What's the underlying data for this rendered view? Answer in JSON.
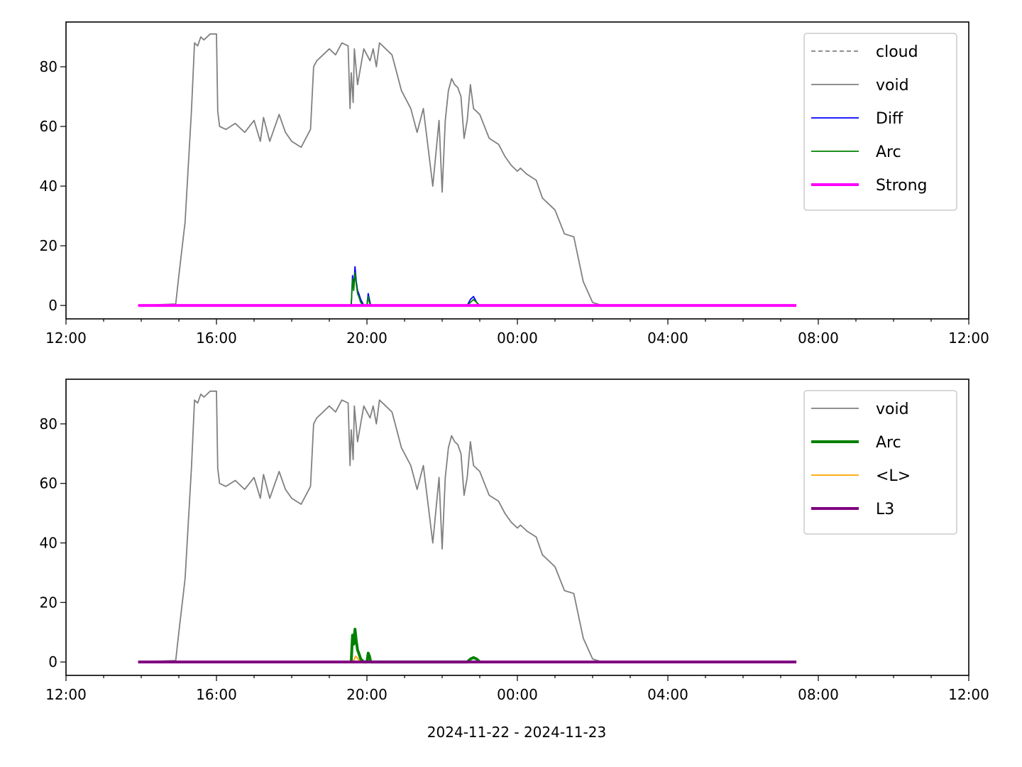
{
  "figure": {
    "xlabel": "2024-11-22 - 2024-11-23"
  },
  "colors": {
    "cloud": "#808080",
    "void": "#808080",
    "Diff": "#0000ff",
    "Arc": "#008000",
    "Strong": "#ff00ff",
    "L": "#ffa500",
    "L3": "#800080"
  },
  "chart_data": [
    {
      "type": "line",
      "x_axis": "time",
      "xlim": [
        "12:00",
        "12:00+1d"
      ],
      "xticks": [
        "12:00",
        "16:00",
        "20:00",
        "00:00",
        "04:00",
        "08:00",
        "12:00"
      ],
      "ylim": [
        -4.5,
        95
      ],
      "yticks": [
        0,
        20,
        40,
        60,
        80
      ],
      "legend_position": "top-right",
      "legend": [
        "cloud",
        "void",
        "Diff",
        "Arc",
        "Strong"
      ],
      "series": [
        {
          "name": "cloud",
          "style": "dashed",
          "color": "#808080",
          "x": [],
          "y": []
        },
        {
          "name": "void",
          "style": "solid",
          "color": "#808080",
          "x": [
            "13:55",
            "14:55",
            "15:00",
            "15:10",
            "15:20",
            "15:25",
            "15:30",
            "15:35",
            "15:40",
            "15:50",
            "16:00",
            "16:02",
            "16:05",
            "16:15",
            "16:30",
            "16:45",
            "17:00",
            "17:10",
            "17:15",
            "17:25",
            "17:40",
            "17:50",
            "18:00",
            "18:15",
            "18:25",
            "18:30",
            "18:35",
            "18:40",
            "18:50",
            "19:00",
            "19:10",
            "19:20",
            "19:30",
            "19:33",
            "19:35",
            "19:38",
            "19:40",
            "19:45",
            "19:50",
            "19:55",
            "20:00",
            "20:05",
            "20:10",
            "20:15",
            "20:20",
            "20:30",
            "20:40",
            "20:45",
            "20:55",
            "21:10",
            "21:20",
            "21:30",
            "21:45",
            "21:55",
            "22:00",
            "22:05",
            "22:10",
            "22:15",
            "22:20",
            "22:25",
            "22:30",
            "22:35",
            "22:40",
            "22:45",
            "22:50",
            "23:00",
            "23:15",
            "23:30",
            "23:40",
            "23:50",
            "00:00",
            "00:05",
            "00:10",
            "00:15",
            "00:30",
            "00:40",
            "00:50",
            "01:00",
            "01:15",
            "01:30",
            "01:45",
            "02:00",
            "02:15",
            "02:30",
            "02:40",
            "02:50",
            "03:00",
            "03:15",
            "03:30",
            "03:45",
            "04:00",
            "04:15",
            "04:30",
            "04:40",
            "04:50",
            "05:00",
            "05:15",
            "05:30",
            "05:40",
            "05:50",
            "06:00",
            "06:10",
            "06:15"
          ],
          "y": [
            0,
            0.5,
            10,
            28,
            65,
            88,
            87,
            90,
            89,
            91,
            91,
            65,
            60,
            59,
            61,
            58,
            62,
            55,
            63,
            55,
            64,
            58,
            55,
            53,
            57,
            59,
            80,
            82,
            84,
            86,
            84,
            88,
            87,
            66,
            78,
            68,
            86,
            74,
            80,
            86,
            84,
            82,
            86,
            80,
            88,
            86,
            84,
            80,
            72,
            66,
            58,
            66,
            40,
            62,
            38,
            62,
            72,
            76,
            74,
            73,
            70,
            56,
            62,
            74,
            66,
            64,
            56,
            54,
            50,
            47,
            45,
            46,
            45,
            44,
            42,
            36,
            34,
            32,
            24,
            23,
            8,
            1,
            0,
            0,
            0,
            0,
            0,
            0,
            0,
            0,
            0,
            0,
            0,
            0,
            0,
            0,
            0,
            0,
            0,
            0,
            0,
            0,
            0
          ]
        },
        {
          "name": "Diff",
          "style": "solid",
          "color": "#0000ff",
          "x": [
            "19:35",
            "19:37",
            "19:39",
            "19:41",
            "19:43",
            "19:45",
            "19:47",
            "19:50",
            "19:55",
            "20:00",
            "20:02",
            "20:04",
            "20:06",
            "22:40",
            "22:45",
            "22:50",
            "22:55",
            "23:00"
          ],
          "y": [
            0,
            10,
            6,
            13,
            8,
            5,
            4,
            2,
            0,
            0,
            4,
            2,
            0,
            0,
            2,
            3,
            1,
            0
          ]
        },
        {
          "name": "Arc",
          "style": "solid",
          "color": "#008000",
          "x": [
            "19:35",
            "19:37",
            "19:39",
            "19:41",
            "19:43",
            "19:45",
            "19:47",
            "19:50",
            "19:55",
            "20:00",
            "20:02",
            "20:04",
            "20:06",
            "22:40",
            "22:45",
            "22:50",
            "22:55",
            "23:00"
          ],
          "y": [
            0,
            9,
            5,
            11,
            7,
            4,
            3,
            1,
            0,
            0,
            3,
            1,
            0,
            0,
            1,
            2,
            1,
            0
          ]
        },
        {
          "name": "Strong",
          "style": "solid",
          "color": "#ff00ff",
          "x": [
            "13:55",
            "07:25"
          ],
          "y": [
            0,
            0
          ]
        }
      ]
    },
    {
      "type": "line",
      "x_axis": "time",
      "xlim": [
        "12:00",
        "12:00+1d"
      ],
      "xticks": [
        "12:00",
        "16:00",
        "20:00",
        "00:00",
        "04:00",
        "08:00",
        "12:00"
      ],
      "ylim": [
        -4.5,
        95
      ],
      "yticks": [
        0,
        20,
        40,
        60,
        80
      ],
      "xlabel": "2024-11-22 - 2024-11-23",
      "legend_position": "top-right",
      "legend": [
        "void",
        "Arc",
        "<L>",
        "L3"
      ],
      "series": [
        {
          "name": "void",
          "style": "solid",
          "color": "#808080",
          "same_as_panel_1": true
        },
        {
          "name": "Arc",
          "style": "solid",
          "color": "#008000",
          "x": [
            "19:35",
            "19:37",
            "19:39",
            "19:41",
            "19:43",
            "19:45",
            "19:47",
            "19:50",
            "19:55",
            "20:00",
            "20:02",
            "20:04",
            "20:06",
            "22:40",
            "22:45",
            "22:50",
            "22:55",
            "23:00"
          ],
          "y": [
            0,
            9,
            6,
            11,
            7,
            4,
            3,
            1,
            0,
            0,
            3,
            2,
            0,
            0,
            1,
            1.5,
            1,
            0
          ]
        },
        {
          "name": "<L>",
          "style": "solid",
          "color": "#ffa500",
          "x": [
            "19:38",
            "19:42",
            "19:46",
            "19:50"
          ],
          "y": [
            0,
            2,
            1,
            0
          ]
        },
        {
          "name": "L3",
          "style": "solid",
          "color": "#800080",
          "x": [
            "13:55",
            "07:25"
          ],
          "y": [
            0,
            0
          ]
        }
      ]
    }
  ]
}
